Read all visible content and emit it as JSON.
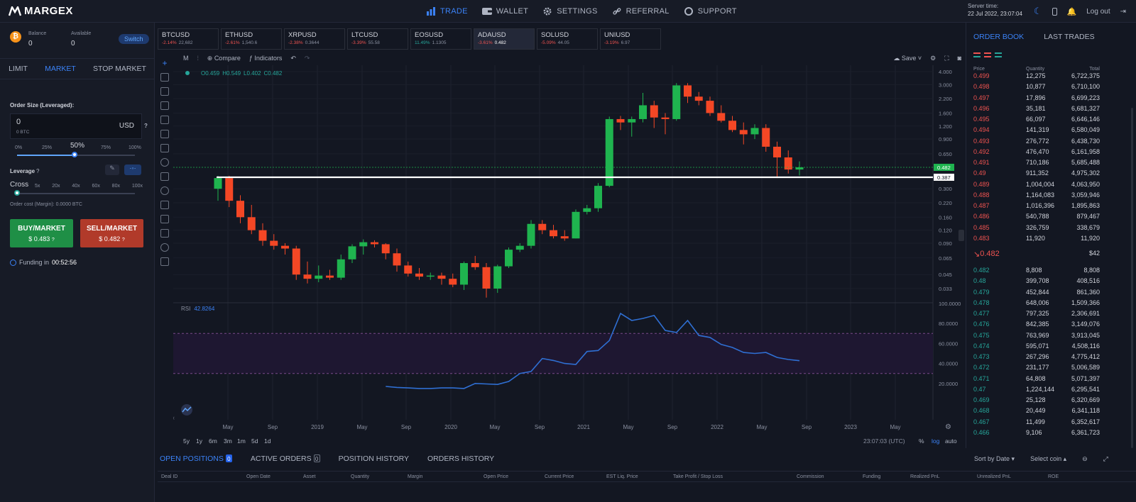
{
  "topbar": {
    "logo": "MARGEX",
    "nav": [
      {
        "label": "TRADE",
        "icon": "bar-chart-icon",
        "active": true
      },
      {
        "label": "WALLET",
        "icon": "wallet-icon",
        "active": false
      },
      {
        "label": "SETTINGS",
        "icon": "gear-icon",
        "active": false
      },
      {
        "label": "REFERRAL",
        "icon": "link-icon",
        "active": false
      },
      {
        "label": "SUPPORT",
        "icon": "lifebuoy-icon",
        "active": false
      }
    ],
    "server_time_label": "Server time:",
    "server_time": "22 Jul 2022, 23:07:04",
    "logout": "Log out"
  },
  "left": {
    "balance_label": "Balance",
    "balance": "0",
    "available_label": "Available",
    "available": "0",
    "switch": "Switch",
    "tabs": [
      "LIMIT",
      "MARKET",
      "STOP MARKET"
    ],
    "order_size_label": "Order Size (Leveraged):",
    "order_size_value": "0",
    "order_size_btc": "0 BTC",
    "currency": "USD",
    "size_ticks": [
      "0%",
      "25%",
      "50%",
      "75%",
      "100%"
    ],
    "size_selected": "50%",
    "size_fraction": 0.5,
    "leverage_label": "Leverage",
    "leverage_mode": "Cross",
    "leverage_ticks": [
      "5x",
      "20x",
      "40x",
      "60x",
      "80x",
      "100x"
    ],
    "order_cost": "Order cost (Margin): 0.0000 BTC",
    "buy_label": "BUY/MARKET",
    "buy_price": "$ 0.483",
    "sell_label": "SELL/MARKET",
    "sell_price": "$ 0.482",
    "funding_label": "Funding in",
    "funding_time": "00:52:56"
  },
  "tickers": [
    {
      "name": "BTCUSD",
      "change": "-2.14%",
      "price": "22,682",
      "dir": "neg"
    },
    {
      "name": "ETHUSD",
      "change": "-2.61%",
      "price": "1,540.6",
      "dir": "neg"
    },
    {
      "name": "XRPUSD",
      "change": "-2.38%",
      "price": "0.3644",
      "dir": "neg"
    },
    {
      "name": "LTCUSD",
      "change": "-3.39%",
      "price": "55.58",
      "dir": "neg"
    },
    {
      "name": "EOSUSD",
      "change": "11.49%",
      "price": "1.1305",
      "dir": "pos"
    },
    {
      "name": "ADAUSD",
      "change": "-3.61%",
      "price": "0.482",
      "dir": "neg",
      "selected": true
    },
    {
      "name": "SOLUSD",
      "change": "-5.09%",
      "price": "44.05",
      "dir": "neg"
    },
    {
      "name": "UNIUSD",
      "change": "-3.19%",
      "price": "6.97",
      "dir": "neg"
    }
  ],
  "chart_toolbar": {
    "interval": "M",
    "compare": "Compare",
    "indicators": "Indicators",
    "save": "Save"
  },
  "chart_data": {
    "type": "candlestick",
    "ohlc_legend": {
      "o": "O0.459",
      "h": "H0.549",
      "l": "L0.402",
      "c": "C0.482"
    },
    "price_axis_ticks": [
      "4.000",
      "3.000",
      "2.200",
      "1.600",
      "1.200",
      "0.900",
      "0.650",
      "0.482",
      "0.387",
      "0.300",
      "0.220",
      "0.160",
      "0.120",
      "0.090",
      "0.065",
      "0.045",
      "0.033"
    ],
    "last_price": "0.482",
    "hline_price": "0.387",
    "x_ticks": [
      "May",
      "Sep",
      "2019",
      "May",
      "Sep",
      "2020",
      "May",
      "Sep",
      "2021",
      "May",
      "Sep",
      "2022",
      "May",
      "Sep",
      "2023",
      "May"
    ],
    "candles": [
      {
        "o": 0.3,
        "h": 0.4,
        "l": 0.23,
        "c": 0.38
      },
      {
        "o": 0.38,
        "h": 0.4,
        "l": 0.2,
        "c": 0.23
      },
      {
        "o": 0.23,
        "h": 0.26,
        "l": 0.14,
        "c": 0.16
      },
      {
        "o": 0.16,
        "h": 0.21,
        "l": 0.11,
        "c": 0.12
      },
      {
        "o": 0.12,
        "h": 0.14,
        "l": 0.085,
        "c": 0.095
      },
      {
        "o": 0.095,
        "h": 0.11,
        "l": 0.078,
        "c": 0.085
      },
      {
        "o": 0.085,
        "h": 0.09,
        "l": 0.07,
        "c": 0.08
      },
      {
        "o": 0.08,
        "h": 0.085,
        "l": 0.04,
        "c": 0.045
      },
      {
        "o": 0.045,
        "h": 0.06,
        "l": 0.037,
        "c": 0.041
      },
      {
        "o": 0.041,
        "h": 0.055,
        "l": 0.038,
        "c": 0.044
      },
      {
        "o": 0.044,
        "h": 0.05,
        "l": 0.04,
        "c": 0.042
      },
      {
        "o": 0.042,
        "h": 0.07,
        "l": 0.04,
        "c": 0.063
      },
      {
        "o": 0.063,
        "h": 0.088,
        "l": 0.058,
        "c": 0.084
      },
      {
        "o": 0.084,
        "h": 0.098,
        "l": 0.07,
        "c": 0.092
      },
      {
        "o": 0.092,
        "h": 0.096,
        "l": 0.082,
        "c": 0.088
      },
      {
        "o": 0.088,
        "h": 0.09,
        "l": 0.063,
        "c": 0.072
      },
      {
        "o": 0.072,
        "h": 0.08,
        "l": 0.048,
        "c": 0.055
      },
      {
        "o": 0.055,
        "h": 0.06,
        "l": 0.043,
        "c": 0.046
      },
      {
        "o": 0.046,
        "h": 0.052,
        "l": 0.04,
        "c": 0.043
      },
      {
        "o": 0.043,
        "h": 0.047,
        "l": 0.04,
        "c": 0.044
      },
      {
        "o": 0.044,
        "h": 0.047,
        "l": 0.036,
        "c": 0.041
      },
      {
        "o": 0.041,
        "h": 0.046,
        "l": 0.034,
        "c": 0.036
      },
      {
        "o": 0.036,
        "h": 0.06,
        "l": 0.032,
        "c": 0.058
      },
      {
        "o": 0.058,
        "h": 0.068,
        "l": 0.05,
        "c": 0.053
      },
      {
        "o": 0.053,
        "h": 0.058,
        "l": 0.027,
        "c": 0.033
      },
      {
        "o": 0.033,
        "h": 0.056,
        "l": 0.03,
        "c": 0.054
      },
      {
        "o": 0.054,
        "h": 0.082,
        "l": 0.052,
        "c": 0.078
      },
      {
        "o": 0.078,
        "h": 0.09,
        "l": 0.074,
        "c": 0.085
      },
      {
        "o": 0.085,
        "h": 0.15,
        "l": 0.08,
        "c": 0.138
      },
      {
        "o": 0.138,
        "h": 0.15,
        "l": 0.11,
        "c": 0.12
      },
      {
        "o": 0.12,
        "h": 0.135,
        "l": 0.1,
        "c": 0.105
      },
      {
        "o": 0.105,
        "h": 0.12,
        "l": 0.095,
        "c": 0.1
      },
      {
        "o": 0.1,
        "h": 0.19,
        "l": 0.1,
        "c": 0.18
      },
      {
        "o": 0.18,
        "h": 0.21,
        "l": 0.17,
        "c": 0.195
      },
      {
        "o": 0.195,
        "h": 0.34,
        "l": 0.18,
        "c": 0.32
      },
      {
        "o": 0.32,
        "h": 1.48,
        "l": 0.31,
        "c": 1.4
      },
      {
        "o": 1.4,
        "h": 1.5,
        "l": 1.1,
        "c": 1.3
      },
      {
        "o": 1.3,
        "h": 1.48,
        "l": 0.95,
        "c": 1.4
      },
      {
        "o": 1.4,
        "h": 2.5,
        "l": 1.3,
        "c": 1.9
      },
      {
        "o": 1.9,
        "h": 2.1,
        "l": 1.15,
        "c": 1.45
      },
      {
        "o": 1.45,
        "h": 1.6,
        "l": 1.0,
        "c": 1.4
      },
      {
        "o": 1.4,
        "h": 3.1,
        "l": 1.35,
        "c": 2.95
      },
      {
        "o": 2.95,
        "h": 3.1,
        "l": 2.0,
        "c": 2.3
      },
      {
        "o": 2.3,
        "h": 2.55,
        "l": 1.9,
        "c": 2.1
      },
      {
        "o": 2.1,
        "h": 2.3,
        "l": 1.5,
        "c": 1.6
      },
      {
        "o": 1.6,
        "h": 1.9,
        "l": 1.3,
        "c": 1.35
      },
      {
        "o": 1.35,
        "h": 1.5,
        "l": 1.05,
        "c": 1.1
      },
      {
        "o": 1.1,
        "h": 1.3,
        "l": 0.8,
        "c": 1.0
      },
      {
        "o": 1.0,
        "h": 1.25,
        "l": 0.9,
        "c": 1.15
      },
      {
        "o": 1.15,
        "h": 1.25,
        "l": 0.68,
        "c": 0.76
      },
      {
        "o": 0.76,
        "h": 0.85,
        "l": 0.38,
        "c": 0.6
      },
      {
        "o": 0.6,
        "h": 0.7,
        "l": 0.42,
        "c": 0.459
      },
      {
        "o": 0.459,
        "h": 0.549,
        "l": 0.402,
        "c": 0.482
      }
    ],
    "rsi": {
      "label": "RSI",
      "value": "42.8264",
      "ticks": [
        "100.0000",
        "80.0000",
        "60.0000",
        "40.0000",
        "20.0000"
      ],
      "ylim": [
        0,
        100
      ],
      "upper_band": 70,
      "lower_band": 30,
      "values": [
        null,
        null,
        null,
        null,
        null,
        null,
        null,
        null,
        null,
        null,
        null,
        null,
        null,
        null,
        null,
        17,
        16,
        15.5,
        15,
        15,
        15.5,
        15.5,
        15,
        20,
        19.5,
        19,
        22,
        30,
        32,
        45,
        43,
        40,
        39,
        52,
        53,
        63,
        90,
        83,
        85,
        88,
        73,
        71,
        83,
        68,
        66,
        59,
        56,
        51,
        50,
        51,
        46,
        44,
        42.8
      ]
    },
    "time_ranges": [
      "5y",
      "1y",
      "6m",
      "3m",
      "1m",
      "5d",
      "1d"
    ],
    "clock": "23:07:03 (UTC)",
    "scale_opts": [
      "%",
      "log",
      "auto"
    ]
  },
  "bottom": {
    "tabs": [
      {
        "label": "OPEN POSITIONS",
        "count": "0",
        "active": true
      },
      {
        "label": "ACTIVE ORDERS",
        "count": "0",
        "active": false
      },
      {
        "label": "POSITION HISTORY",
        "active": false
      },
      {
        "label": "ORDERS HISTORY",
        "active": false
      }
    ],
    "sort": "Sort by Date",
    "select_coin": "Select coin",
    "columns": [
      "Deal ID",
      "Open Date",
      "Asset",
      "Quantity",
      "Margin",
      "Open Price",
      "Current Price",
      "EST Liq. Price",
      "Take Profit / Stop Loss",
      "Commission",
      "Funding",
      "Realized PnL",
      "Unrealized PnL",
      "ROE"
    ]
  },
  "orderbook": {
    "tabs": [
      "ORDER BOOK",
      "LAST TRADES"
    ],
    "headers": [
      "Price",
      "Quantity",
      "Total"
    ],
    "asks": [
      [
        "0.499",
        "12,275",
        "6,722,375"
      ],
      [
        "0.498",
        "10,877",
        "6,710,100"
      ],
      [
        "0.497",
        "17,896",
        "6,699,223"
      ],
      [
        "0.496",
        "35,181",
        "6,681,327"
      ],
      [
        "0.495",
        "66,097",
        "6,646,146"
      ],
      [
        "0.494",
        "141,319",
        "6,580,049"
      ],
      [
        "0.493",
        "276,772",
        "6,438,730"
      ],
      [
        "0.492",
        "476,470",
        "6,161,958"
      ],
      [
        "0.491",
        "710,186",
        "5,685,488"
      ],
      [
        "0.49",
        "911,352",
        "4,975,302"
      ],
      [
        "0.489",
        "1,004,004",
        "4,063,950"
      ],
      [
        "0.488",
        "1,164,083",
        "3,059,946"
      ],
      [
        "0.487",
        "1,016,396",
        "1,895,863"
      ],
      [
        "0.486",
        "540,788",
        "879,467"
      ],
      [
        "0.485",
        "326,759",
        "338,679"
      ],
      [
        "0.483",
        "11,920",
        "11,920"
      ]
    ],
    "last_price": "0.482",
    "last_total": "$42",
    "bids": [
      [
        "0.482",
        "8,808",
        "8,808"
      ],
      [
        "0.48",
        "399,708",
        "408,516"
      ],
      [
        "0.479",
        "452,844",
        "861,360"
      ],
      [
        "0.478",
        "648,006",
        "1,509,366"
      ],
      [
        "0.477",
        "797,325",
        "2,306,691"
      ],
      [
        "0.476",
        "842,385",
        "3,149,076"
      ],
      [
        "0.475",
        "763,969",
        "3,913,045"
      ],
      [
        "0.474",
        "595,071",
        "4,508,116"
      ],
      [
        "0.473",
        "267,296",
        "4,775,412"
      ],
      [
        "0.472",
        "231,177",
        "5,006,589"
      ],
      [
        "0.471",
        "64,808",
        "5,071,397"
      ],
      [
        "0.47",
        "1,224,144",
        "6,295,541"
      ],
      [
        "0.469",
        "25,128",
        "6,320,669"
      ],
      [
        "0.468",
        "20,449",
        "6,341,118"
      ],
      [
        "0.467",
        "11,499",
        "6,352,617"
      ],
      [
        "0.466",
        "9,106",
        "6,361,723"
      ]
    ]
  }
}
